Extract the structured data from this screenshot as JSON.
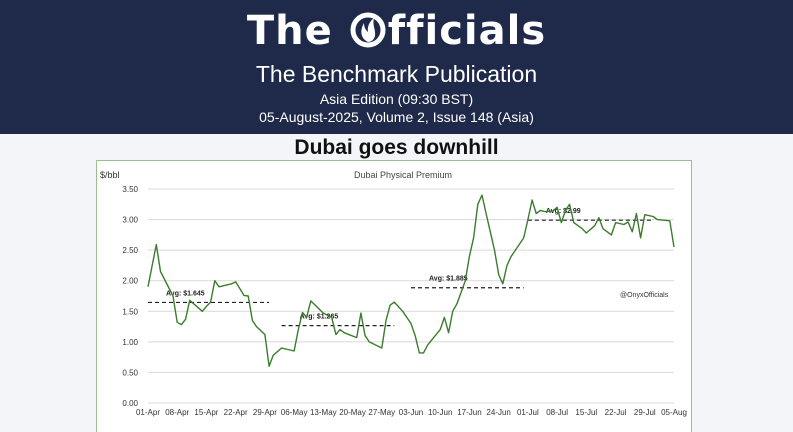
{
  "header": {
    "brand_prefix": "The ",
    "brand_suffix": "fficials",
    "publication": "The Benchmark Publication",
    "edition": "Asia Edition (09:30 BST)",
    "issue": "05-August-2025, Volume 2, Issue 148 (Asia)",
    "logo_icon": "flame-o-icon",
    "background_color": "#1f2a4a"
  },
  "headline": "Dubai goes downhill",
  "chart_data": {
    "type": "line",
    "title": "Dubai Physical Premium",
    "ylabel": "$/bbl",
    "xlabel": "",
    "ylim": [
      0,
      3.5
    ],
    "yticks": [
      "0.00",
      "0.50",
      "1.00",
      "1.50",
      "2.00",
      "2.50",
      "3.00",
      "3.50"
    ],
    "xticks": [
      "01-Apr",
      "08-Apr",
      "15-Apr",
      "22-Apr",
      "29-Apr",
      "06-May",
      "13-May",
      "20-May",
      "27-May",
      "03-Jun",
      "10-Jun",
      "17-Jun",
      "24-Jun",
      "01-Jul",
      "08-Jul",
      "15-Jul",
      "22-Jul",
      "29-Jul",
      "05-Aug"
    ],
    "grid": true,
    "line_color": "#3a7d2c",
    "avg_line_color": "#222222",
    "watermark": "@OnyxOfficials",
    "series": [
      {
        "points": [
          [
            "01-Apr",
            1.9
          ],
          [
            "02-Apr",
            2.25
          ],
          [
            "03-Apr",
            2.59
          ],
          [
            "04-Apr",
            2.15
          ],
          [
            "07-Apr",
            1.75
          ],
          [
            "08-Apr",
            1.32
          ],
          [
            "09-Apr",
            1.28
          ],
          [
            "10-Apr",
            1.37
          ],
          [
            "11-Apr",
            1.68
          ],
          [
            "14-Apr",
            1.5
          ],
          [
            "15-Apr",
            1.58
          ],
          [
            "16-Apr",
            1.65
          ],
          [
            "17-Apr",
            2.0
          ],
          [
            "18-Apr",
            1.9
          ],
          [
            "21-Apr",
            1.95
          ],
          [
            "22-Apr",
            1.98
          ],
          [
            "24-Apr",
            1.76
          ],
          [
            "25-Apr",
            1.75
          ],
          [
            "26-Apr",
            1.35
          ],
          [
            "27-Apr",
            1.25
          ],
          [
            "29-Apr",
            1.12
          ],
          [
            "30-Apr",
            0.6
          ],
          [
            "01-May",
            0.78
          ],
          [
            "03-May",
            0.9
          ],
          [
            "06-May",
            0.85
          ],
          [
            "07-May",
            1.2
          ],
          [
            "08-May",
            1.48
          ],
          [
            "09-May",
            1.4
          ],
          [
            "10-May",
            1.67
          ],
          [
            "13-May",
            1.47
          ],
          [
            "15-May",
            1.4
          ],
          [
            "16-May",
            1.12
          ],
          [
            "17-May",
            1.2
          ],
          [
            "18-May",
            1.15
          ],
          [
            "21-May",
            1.07
          ],
          [
            "22-May",
            1.47
          ],
          [
            "23-May",
            1.1
          ],
          [
            "24-May",
            1.0
          ],
          [
            "27-May",
            0.9
          ],
          [
            "28-May",
            1.35
          ],
          [
            "29-May",
            1.6
          ],
          [
            "30-May",
            1.65
          ],
          [
            "01-Jun",
            1.5
          ],
          [
            "03-Jun",
            1.3
          ],
          [
            "04-Jun",
            1.1
          ],
          [
            "05-Jun",
            0.82
          ],
          [
            "06-Jun",
            0.82
          ],
          [
            "07-Jun",
            0.95
          ],
          [
            "10-Jun",
            1.2
          ],
          [
            "11-Jun",
            1.4
          ],
          [
            "12-Jun",
            1.15
          ],
          [
            "13-Jun",
            1.5
          ],
          [
            "14-Jun",
            1.62
          ],
          [
            "16-Jun",
            2.0
          ],
          [
            "17-Jun",
            2.4
          ],
          [
            "18-Jun",
            2.7
          ],
          [
            "19-Jun",
            3.25
          ],
          [
            "20-Jun",
            3.4
          ],
          [
            "21-Jun",
            3.1
          ],
          [
            "22-Jun",
            2.8
          ],
          [
            "23-Jun",
            2.5
          ],
          [
            "24-Jun",
            2.1
          ],
          [
            "25-Jun",
            1.95
          ],
          [
            "26-Jun",
            2.25
          ],
          [
            "27-Jun",
            2.4
          ],
          [
            "28-Jun",
            2.5
          ],
          [
            "30-Jun",
            2.7
          ],
          [
            "01-Jul",
            3.0
          ],
          [
            "02-Jul",
            3.32
          ],
          [
            "03-Jul",
            3.1
          ],
          [
            "04-Jul",
            3.15
          ],
          [
            "05-Jul",
            3.13
          ],
          [
            "07-Jul",
            3.14
          ],
          [
            "08-Jul",
            3.2
          ],
          [
            "09-Jul",
            2.95
          ],
          [
            "10-Jul",
            3.15
          ],
          [
            "11-Jul",
            3.25
          ],
          [
            "12-Jul",
            2.95
          ],
          [
            "14-Jul",
            2.85
          ],
          [
            "15-Jul",
            2.78
          ],
          [
            "17-Jul",
            2.9
          ],
          [
            "18-Jul",
            3.03
          ],
          [
            "19-Jul",
            2.85
          ],
          [
            "21-Jul",
            2.75
          ],
          [
            "22-Jul",
            2.95
          ],
          [
            "24-Jul",
            2.92
          ],
          [
            "25-Jul",
            2.96
          ],
          [
            "26-Jul",
            2.8
          ],
          [
            "27-Jul",
            3.1
          ],
          [
            "28-Jul",
            2.7
          ],
          [
            "29-Jul",
            3.08
          ],
          [
            "31-Jul",
            3.05
          ],
          [
            "01-Aug",
            3.0
          ],
          [
            "04-Aug",
            2.98
          ],
          [
            "05-Aug",
            2.55
          ]
        ]
      }
    ],
    "averages": [
      {
        "label": "Avg: $1.645",
        "value": 1.645,
        "from": "01-Apr",
        "to": "30-Apr"
      },
      {
        "label": "Avg: $1.265",
        "value": 1.265,
        "from": "03-May",
        "to": "30-May"
      },
      {
        "label": "Avg: $1.885",
        "value": 1.885,
        "from": "03-Jun",
        "to": "30-Jun"
      },
      {
        "label": "Avg: $2.99",
        "value": 2.99,
        "from": "01-Jul",
        "to": "31-Jul"
      }
    ]
  }
}
